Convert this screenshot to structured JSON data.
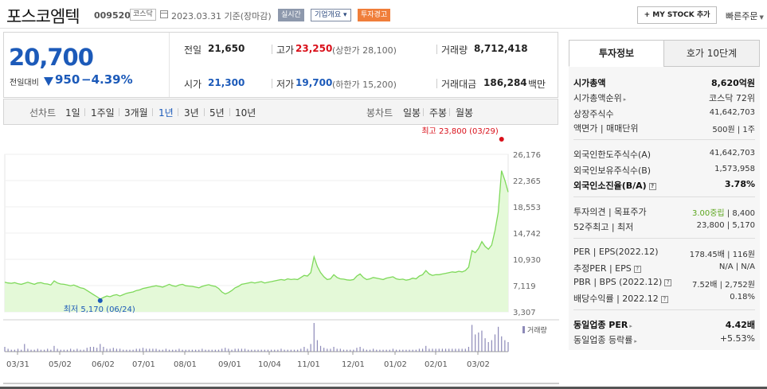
{
  "header": {
    "title": "포스코엠텍",
    "code": "009520",
    "market": "코스닥",
    "date": "2023.03.31  기준(장마감)",
    "badge_realtime": "실시간",
    "badge_company": "기업개요 ▾",
    "badge_warning": "투자경고",
    "my_stock": "+ MY STOCK 추가",
    "quick_order": "빠른주문"
  },
  "price": {
    "now": "20,700",
    "prev_label": "전일대비",
    "change": "950",
    "change_pct": "−4.39%",
    "prev_close_label": "전일",
    "prev_close": "21,650",
    "high_label": "고가",
    "high": "23,250",
    "upper_limit": "(상한가 28,100)",
    "volume_label": "거래량",
    "volume": "8,712,418",
    "open_label": "시가",
    "open": "21,300",
    "low_label": "저가",
    "low": "19,700",
    "lower_limit": "(하한가 15,200)",
    "amount_label": "거래대금",
    "amount": "186,284",
    "amount_unit": "백만"
  },
  "periods": {
    "line_label": "선차트",
    "items": [
      "1일",
      "1주일",
      "3개월",
      "1년",
      "3년",
      "5년",
      "10년"
    ],
    "selected": "1년",
    "candle_label": "봉차트",
    "candle_items": [
      "일봉",
      "주봉",
      "월봉"
    ]
  },
  "chart_data": {
    "type": "area",
    "y_ticks": [
      "26,176",
      "22,365",
      "18,553",
      "14,742",
      "10,930",
      "7,119",
      "3,307"
    ],
    "ylim": [
      3307,
      26176
    ],
    "x_ticks": [
      "03/31",
      "05/02",
      "06/02",
      "07/01",
      "08/01",
      "09/01",
      "10/04",
      "11/01",
      "12/01",
      "01/02",
      "02/01",
      "03/02"
    ],
    "high_annotation": "최고 23,800 (03/29)",
    "low_annotation": "최저 5,170 (06/24)",
    "volume_label": "거래량",
    "colors": {
      "line": "#7ed95a",
      "fill": "#e4f9d8",
      "high": "#d9101a",
      "low": "#1c5ab9"
    },
    "values": [
      7600,
      7500,
      7450,
      7550,
      7400,
      7300,
      7450,
      7600,
      7450,
      7300,
      7500,
      7550,
      7400,
      7350,
      7200,
      7800,
      7500,
      7350,
      7300,
      7200,
      7100,
      7200,
      7000,
      6800,
      6700,
      6400,
      6100,
      5800,
      5500,
      5170,
      5400,
      5600,
      5500,
      5700,
      5800,
      5600,
      5800,
      6000,
      6100,
      6200,
      6400,
      6500,
      6700,
      6800,
      6900,
      7000,
      7100,
      7000,
      6900,
      7100,
      7300,
      7100,
      7000,
      7200,
      7300,
      7100,
      7050,
      7000,
      6900,
      6800,
      7000,
      7150,
      7250,
      7100,
      7000,
      6700,
      6200,
      5900,
      6100,
      6400,
      6800,
      7000,
      7300,
      7400,
      7500,
      7600,
      7500,
      7600,
      7700,
      7500,
      7600,
      7700,
      7800,
      7900,
      8000,
      7900,
      8100,
      8000,
      8050,
      8000,
      8300,
      8600,
      8500,
      9000,
      11300,
      9900,
      9000,
      8400,
      8000,
      8100,
      8700,
      8300,
      8100,
      8050,
      7950,
      7900,
      8000,
      8500,
      8800,
      8300,
      8000,
      8100,
      8300,
      8200,
      8100,
      8000,
      8200,
      8300,
      8400,
      8100,
      8000,
      8050,
      7900,
      8000,
      8200,
      8100,
      8500,
      8700,
      9300,
      8800,
      8600,
      8700,
      8700,
      8800,
      8900,
      9000,
      9100,
      9050,
      9200,
      9100,
      9300,
      9800,
      12200,
      11900,
      12500,
      13500,
      12800,
      12400,
      13000,
      15100,
      17800,
      23800,
      22400,
      20700
    ],
    "volumes": [
      0.05,
      0.03,
      0.02,
      0.02,
      0.03,
      0.02,
      0.08,
      0.03,
      0.02,
      0.02,
      0.03,
      0.02,
      0.02,
      0.03,
      0.02,
      0.06,
      0.03,
      0.02,
      0.02,
      0.02,
      0.03,
      0.02,
      0.03,
      0.02,
      0.02,
      0.04,
      0.05,
      0.05,
      0.04,
      0.08,
      0.05,
      0.03,
      0.03,
      0.04,
      0.03,
      0.03,
      0.02,
      0.02,
      0.02,
      0.02,
      0.03,
      0.03,
      0.04,
      0.03,
      0.03,
      0.03,
      0.03,
      0.02,
      0.02,
      0.03,
      0.02,
      0.02,
      0.02,
      0.03,
      0.02,
      0.02,
      0.02,
      0.02,
      0.02,
      0.02,
      0.03,
      0.02,
      0.02,
      0.02,
      0.02,
      0.02,
      0.03,
      0.04,
      0.03,
      0.02,
      0.03,
      0.03,
      0.03,
      0.03,
      0.02,
      0.02,
      0.02,
      0.02,
      0.02,
      0.02,
      0.02,
      0.02,
      0.02,
      0.02,
      0.03,
      0.02,
      0.02,
      0.02,
      0.02,
      0.02,
      0.03,
      0.05,
      0.03,
      0.08,
      0.3,
      0.12,
      0.06,
      0.04,
      0.03,
      0.03,
      0.05,
      0.03,
      0.03,
      0.02,
      0.02,
      0.02,
      0.02,
      0.04,
      0.05,
      0.03,
      0.02,
      0.02,
      0.03,
      0.02,
      0.02,
      0.02,
      0.02,
      0.02,
      0.03,
      0.02,
      0.02,
      0.02,
      0.02,
      0.02,
      0.02,
      0.02,
      0.03,
      0.03,
      0.06,
      0.03,
      0.03,
      0.03,
      0.03,
      0.03,
      0.03,
      0.03,
      0.03,
      0.03,
      0.03,
      0.03,
      0.03,
      0.05,
      0.28,
      0.18,
      0.2,
      0.22,
      0.14,
      0.1,
      0.12,
      0.18,
      0.26,
      0.16,
      0.12,
      0.1
    ]
  },
  "right": {
    "tab_info": "투자정보",
    "tab_quote": "호가 10단계",
    "market_cap_label": "시가총액",
    "market_cap": "8,620억원",
    "cap_rank_label": "시가총액순위",
    "cap_rank": "코스닥 72위",
    "shares_label": "상장주식수",
    "shares": "41,642,703",
    "par_label": "액면가 | 매매단위",
    "par": "500원 | 1주",
    "foreign_limit_label": "외국인한도주식수(A)",
    "foreign_limit": "41,642,703",
    "foreign_hold_label": "외국인보유주식수(B)",
    "foreign_hold": "1,573,958",
    "foreign_rate_label": "외국인소진율(B/A)",
    "foreign_rate": "3.78%",
    "opinion_label": "투자의견 | 목표주가",
    "opinion": "3.00중립",
    "target": "8,400",
    "w52_label": "52주최고 | 최저",
    "w52": "23,800 | 5,170",
    "per_label": "PER | EPS(2022.12)",
    "per": "178.45배 | 116원",
    "est_per_label": "추정PER | EPS",
    "est_per": "N/A | N/A",
    "pbr_label": "PBR | BPS (2022.12)",
    "pbr": "7.52배 | 2,752원",
    "div_label": "배당수익률 | 2022.12",
    "div": "0.18%",
    "sector_per_label": "동일업종 PER",
    "sector_per": "4.42배",
    "sector_rate_label": "동일업종 등락률",
    "sector_rate": "+5.53%"
  }
}
